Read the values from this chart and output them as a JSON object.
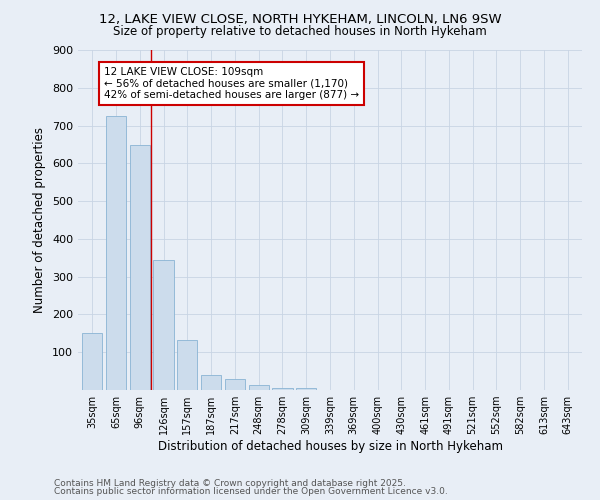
{
  "title_line1": "12, LAKE VIEW CLOSE, NORTH HYKEHAM, LINCOLN, LN6 9SW",
  "title_line2": "Size of property relative to detached houses in North Hykeham",
  "xlabel": "Distribution of detached houses by size in North Hykeham",
  "ylabel": "Number of detached properties",
  "bar_labels": [
    "35sqm",
    "65sqm",
    "96sqm",
    "126sqm",
    "157sqm",
    "187sqm",
    "217sqm",
    "248sqm",
    "278sqm",
    "309sqm",
    "339sqm",
    "369sqm",
    "400sqm",
    "430sqm",
    "461sqm",
    "491sqm",
    "521sqm",
    "552sqm",
    "582sqm",
    "613sqm",
    "643sqm"
  ],
  "bar_values": [
    150,
    725,
    648,
    345,
    133,
    40,
    30,
    12,
    5,
    5,
    0,
    0,
    0,
    0,
    0,
    0,
    0,
    0,
    0,
    0,
    0
  ],
  "bar_color": "#ccdcec",
  "bar_edge_color": "#8ab4d4",
  "grid_color": "#c8d4e4",
  "background_color": "#e8eef6",
  "red_line_x": 2.45,
  "annotation_text": "12 LAKE VIEW CLOSE: 109sqm\n← 56% of detached houses are smaller (1,170)\n42% of semi-detached houses are larger (877) →",
  "annotation_box_color": "#ffffff",
  "annotation_border_color": "#cc0000",
  "footer_line1": "Contains HM Land Registry data © Crown copyright and database right 2025.",
  "footer_line2": "Contains public sector information licensed under the Open Government Licence v3.0.",
  "ylim": [
    0,
    900
  ],
  "yticks": [
    0,
    100,
    200,
    300,
    400,
    500,
    600,
    700,
    800,
    900
  ]
}
